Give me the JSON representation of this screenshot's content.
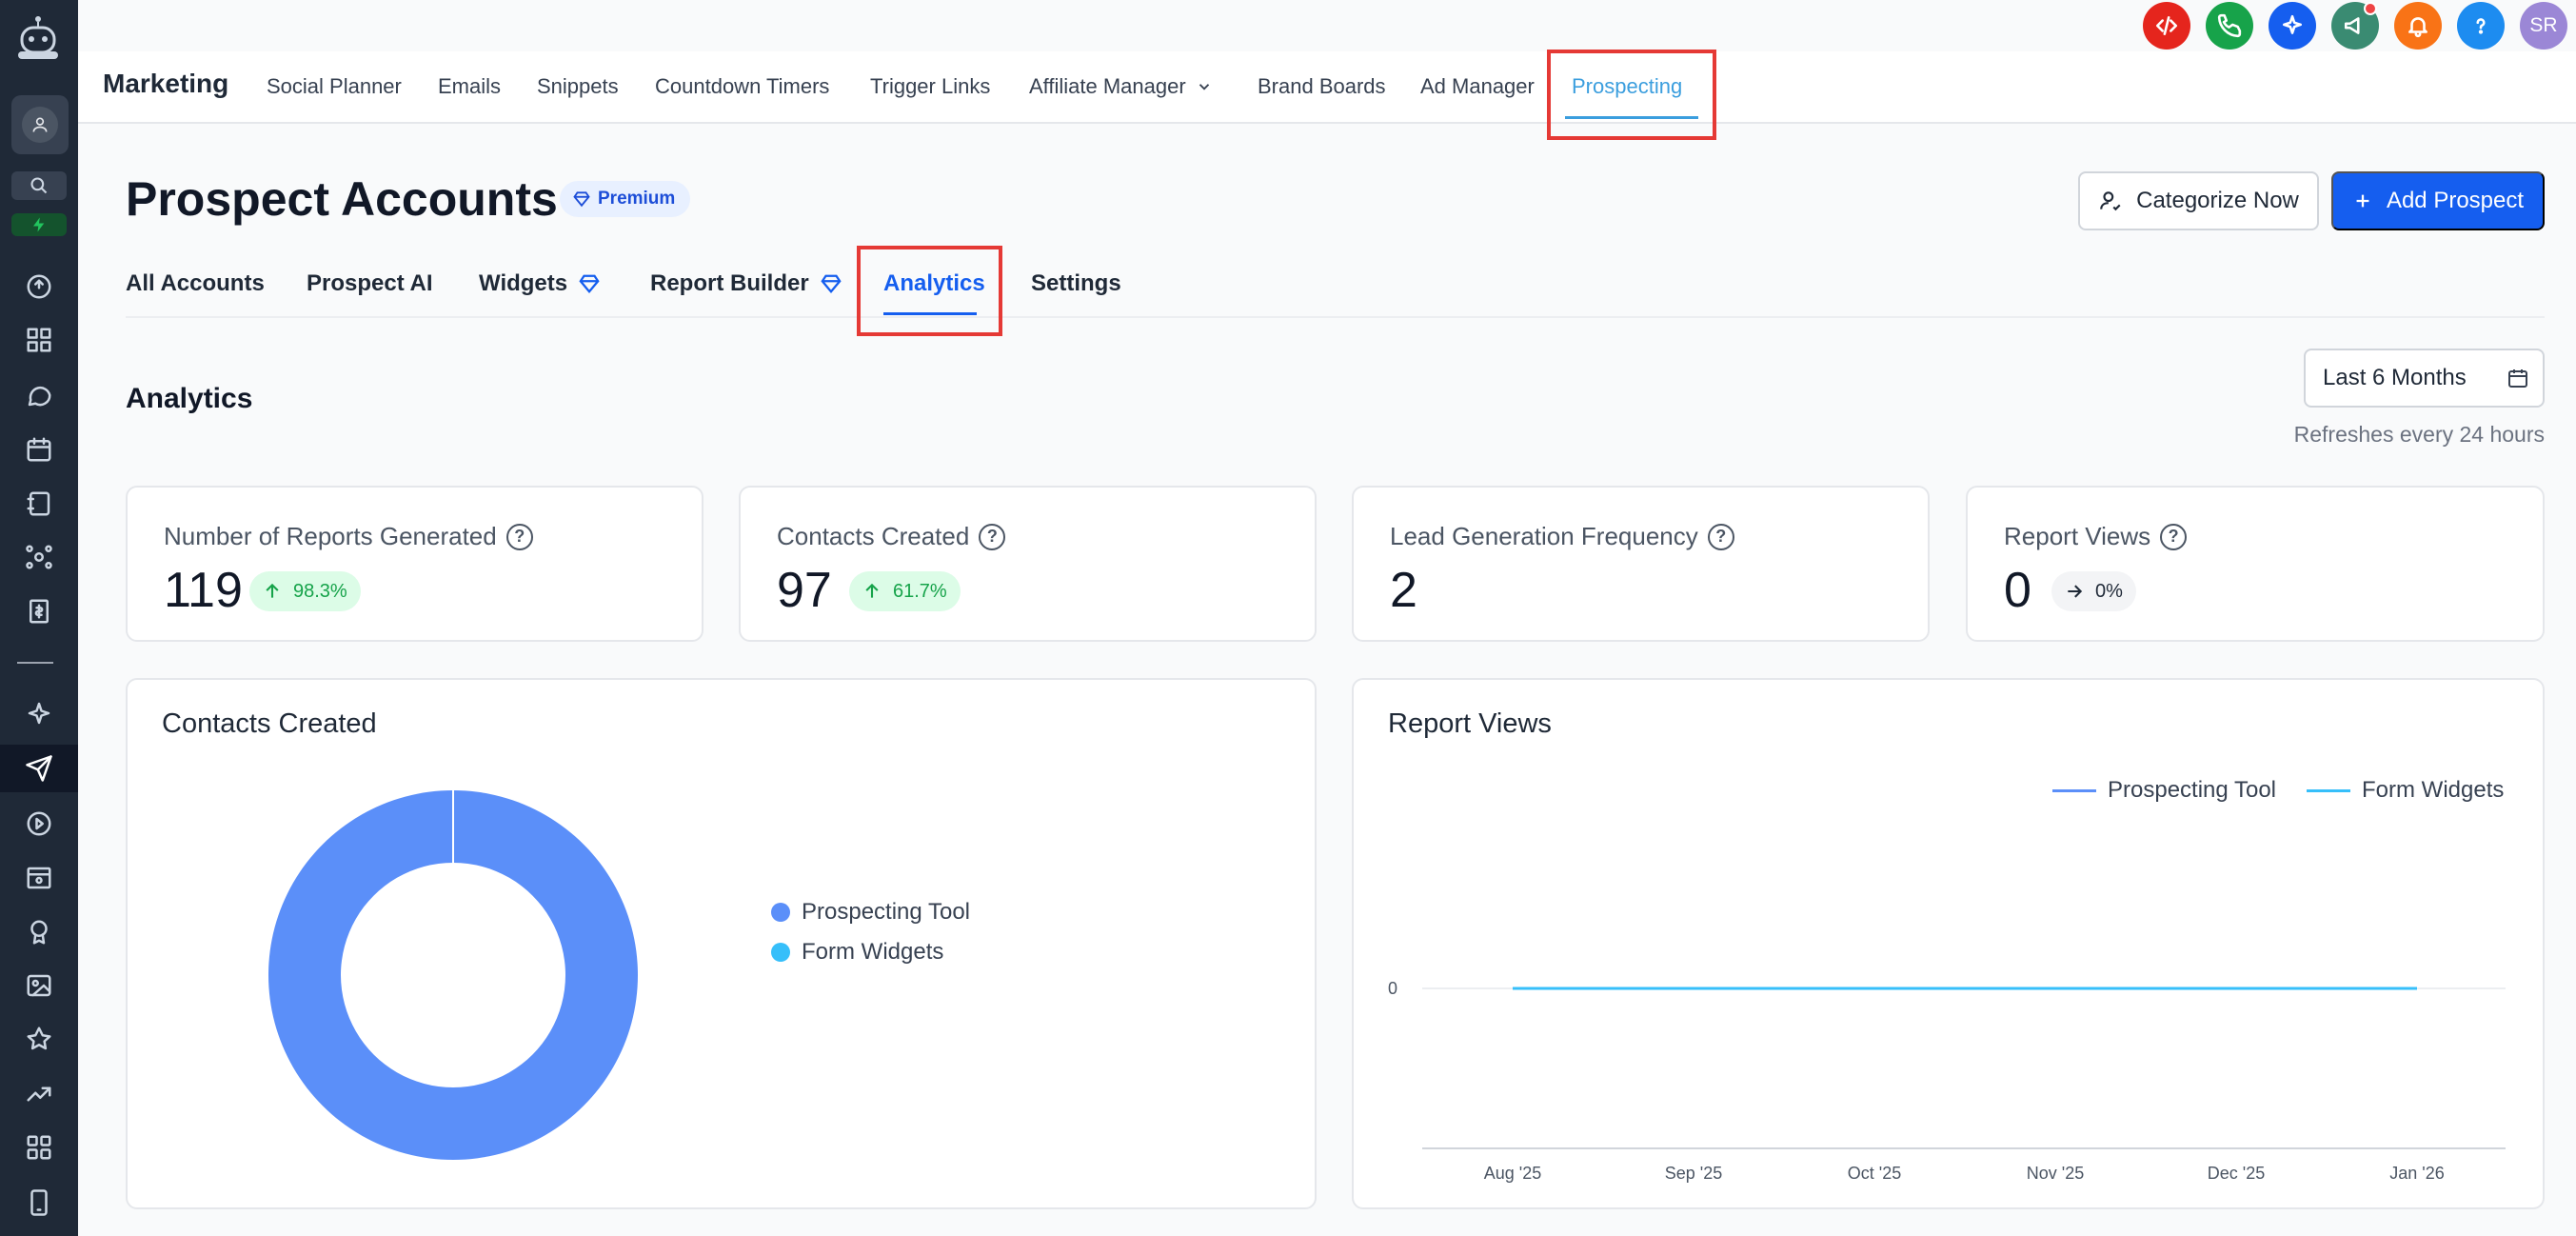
{
  "top_icons": [
    {
      "name": "code-icon",
      "color": "#e5251d"
    },
    {
      "name": "phone-icon",
      "color": "#17a34a"
    },
    {
      "name": "sparkle-icon",
      "color": "#155eef"
    },
    {
      "name": "megaphone-icon",
      "color": "#3a8b72"
    },
    {
      "name": "bell-icon",
      "color": "#f97316"
    },
    {
      "name": "help-icon",
      "color": "#1d8cf0"
    }
  ],
  "user": {
    "initials": "SR"
  },
  "topnav": {
    "brand": "Marketing",
    "links": [
      "Social Planner",
      "Emails",
      "Snippets",
      "Countdown Timers",
      "Trigger Links",
      "Affiliate Manager",
      "Brand Boards",
      "Ad Manager",
      "Prospecting"
    ],
    "active": "Prospecting"
  },
  "page": {
    "title": "Prospect Accounts",
    "badge": "Premium",
    "categorize_label": "Categorize Now",
    "add_label": "Add Prospect"
  },
  "subtabs": [
    "All Accounts",
    "Prospect AI",
    "Widgets",
    "Report Builder",
    "Analytics",
    "Settings"
  ],
  "analytics": {
    "title": "Analytics",
    "date_range": "Last 6 Months",
    "refresh_note": "Refreshes every 24 hours"
  },
  "stats": [
    {
      "label": "Number of Reports Generated",
      "value": "119",
      "trend": "98.3%",
      "trend_dir": "up"
    },
    {
      "label": "Contacts Created",
      "value": "97",
      "trend": "61.7%",
      "trend_dir": "up"
    },
    {
      "label": "Lead Generation Frequency",
      "value": "2"
    },
    {
      "label": "Report Views",
      "value": "0",
      "trend": "0%",
      "trend_dir": "flat"
    }
  ],
  "colors": {
    "accent": "#155eef",
    "series_1": "#5b8ff9",
    "series_2": "#36bffa",
    "sidebar": "#1f2937"
  },
  "chart_data": [
    {
      "type": "pie",
      "title": "Contacts Created",
      "categories": [
        "Prospecting Tool",
        "Form Widgets"
      ],
      "values": [
        97,
        0
      ],
      "legend": "right"
    },
    {
      "type": "line",
      "title": "Report Views",
      "categories": [
        "Aug '25",
        "Sep '25",
        "Oct '25",
        "Nov '25",
        "Dec '25",
        "Jan '26"
      ],
      "series": [
        {
          "name": "Prospecting Tool",
          "values": [
            0,
            0,
            0,
            0,
            0,
            0
          ]
        },
        {
          "name": "Form Widgets",
          "values": [
            0,
            0,
            0,
            0,
            0,
            0
          ]
        }
      ],
      "y_ticks": [
        "0"
      ],
      "legend": "top-right",
      "grid": true
    }
  ]
}
